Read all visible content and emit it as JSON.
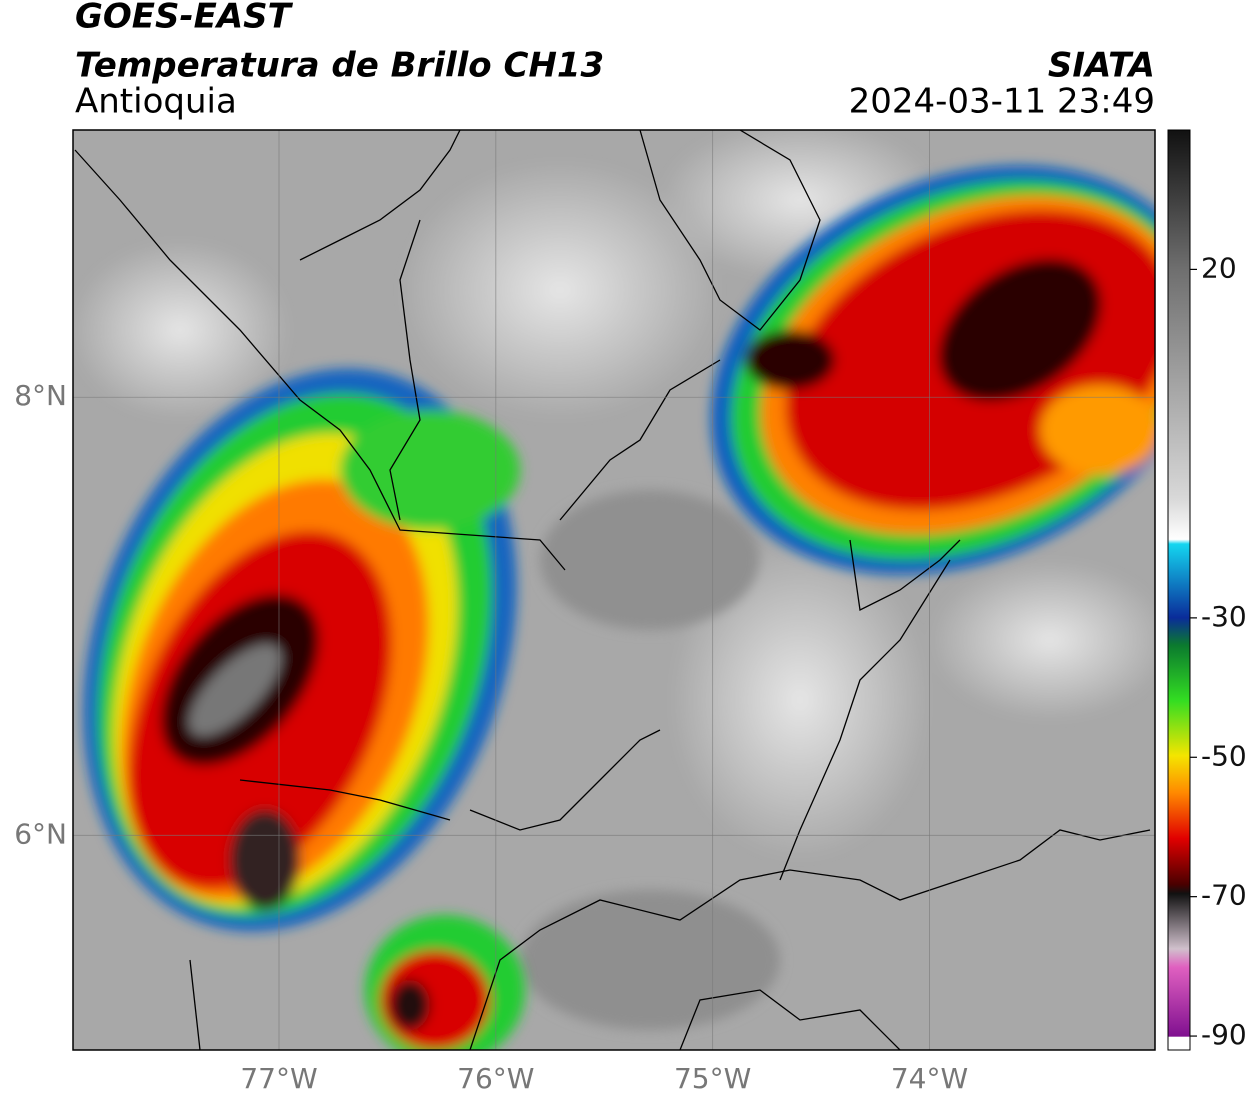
{
  "header": {
    "title": "GOES-EAST",
    "subtitle": "Temperatura de Brillo CH13",
    "region": "Antioquia",
    "source": "SIATA",
    "timestamp": "2024-03-11 23:49"
  },
  "map": {
    "xlim": [
      -77.95,
      -72.96
    ],
    "ylim": [
      5.02,
      9.22
    ],
    "xticks": [
      {
        "value": -77,
        "label": "77°W"
      },
      {
        "value": -76,
        "label": "76°W"
      },
      {
        "value": -75,
        "label": "75°W"
      },
      {
        "value": -74,
        "label": "74°W"
      }
    ],
    "yticks": [
      {
        "value": 6,
        "label": "6°N"
      },
      {
        "value": 8,
        "label": "8°N"
      }
    ],
    "grid": true
  },
  "colorbar": {
    "lim": [
      -92,
      40
    ],
    "ticks": [
      20,
      -30,
      -50,
      -70,
      -90
    ]
  }
}
